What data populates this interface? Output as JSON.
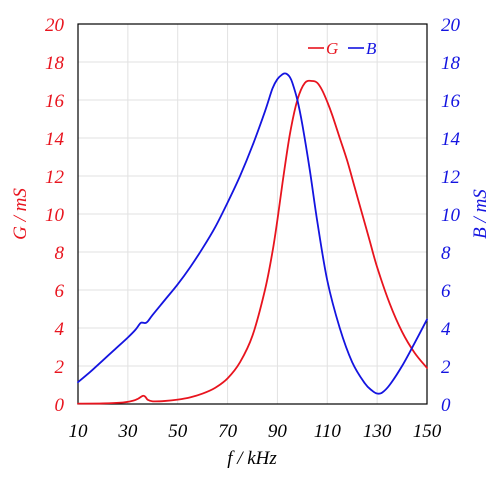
{
  "chart_data": {
    "type": "line",
    "xlabel": "f / kHz",
    "ylabel_left": "G / mS",
    "ylabel_right": "B / mS",
    "xlim": [
      10,
      150
    ],
    "ylim_left": [
      0,
      20
    ],
    "ylim_right": [
      0,
      20
    ],
    "x_ticks": [
      "10",
      "30",
      "50",
      "70",
      "90",
      "110",
      "130",
      "150"
    ],
    "y_ticks_left": [
      "0",
      "2",
      "4",
      "6",
      "8",
      "10",
      "12",
      "14",
      "16",
      "18",
      "20"
    ],
    "y_ticks_right": [
      "0",
      "2",
      "4",
      "6",
      "8",
      "10",
      "12",
      "14",
      "16",
      "18",
      "20"
    ],
    "grid": true,
    "legend_position": "top-right",
    "colors": {
      "G": "#e8141e",
      "B": "#1414e0",
      "grid": "#e2e2e2"
    },
    "series": [
      {
        "name": "G",
        "axis": "left",
        "color": "#e8141e",
        "x": [
          10,
          20,
          28,
          32,
          34,
          36,
          37,
          38,
          40,
          45,
          50,
          55,
          60,
          65,
          70,
          75,
          80,
          85,
          88,
          90,
          92,
          95,
          98,
          101,
          104,
          106,
          108,
          110,
          112,
          115,
          118,
          121,
          124,
          127,
          130,
          135,
          140,
          145,
          150
        ],
        "values": [
          0.02,
          0.03,
          0.08,
          0.17,
          0.27,
          0.43,
          0.38,
          0.22,
          0.14,
          0.16,
          0.23,
          0.35,
          0.55,
          0.85,
          1.35,
          2.2,
          3.6,
          6.0,
          8.0,
          9.7,
          11.6,
          14.2,
          16.0,
          16.9,
          17.0,
          16.9,
          16.5,
          15.9,
          15.2,
          14.0,
          12.8,
          11.4,
          10.0,
          8.6,
          7.2,
          5.3,
          3.8,
          2.7,
          1.9
        ]
      },
      {
        "name": "B",
        "axis": "right",
        "color": "#1414e0",
        "x": [
          10,
          15,
          20,
          25,
          30,
          33,
          35,
          36,
          37,
          38,
          40,
          45,
          50,
          55,
          60,
          65,
          70,
          75,
          80,
          85,
          88,
          90,
          92,
          93,
          94,
          95,
          96,
          98,
          100,
          103,
          106,
          110,
          115,
          120,
          125,
          128,
          130,
          132,
          135,
          140,
          145,
          150
        ],
        "values": [
          1.15,
          1.7,
          2.3,
          2.9,
          3.5,
          3.9,
          4.25,
          4.28,
          4.26,
          4.35,
          4.7,
          5.5,
          6.3,
          7.2,
          8.2,
          9.3,
          10.6,
          12.0,
          13.6,
          15.4,
          16.6,
          17.1,
          17.35,
          17.4,
          17.35,
          17.2,
          16.9,
          16.0,
          14.7,
          12.3,
          9.6,
          6.5,
          4.0,
          2.2,
          1.1,
          0.7,
          0.55,
          0.6,
          1.0,
          2.0,
          3.2,
          4.45
        ]
      }
    ]
  }
}
